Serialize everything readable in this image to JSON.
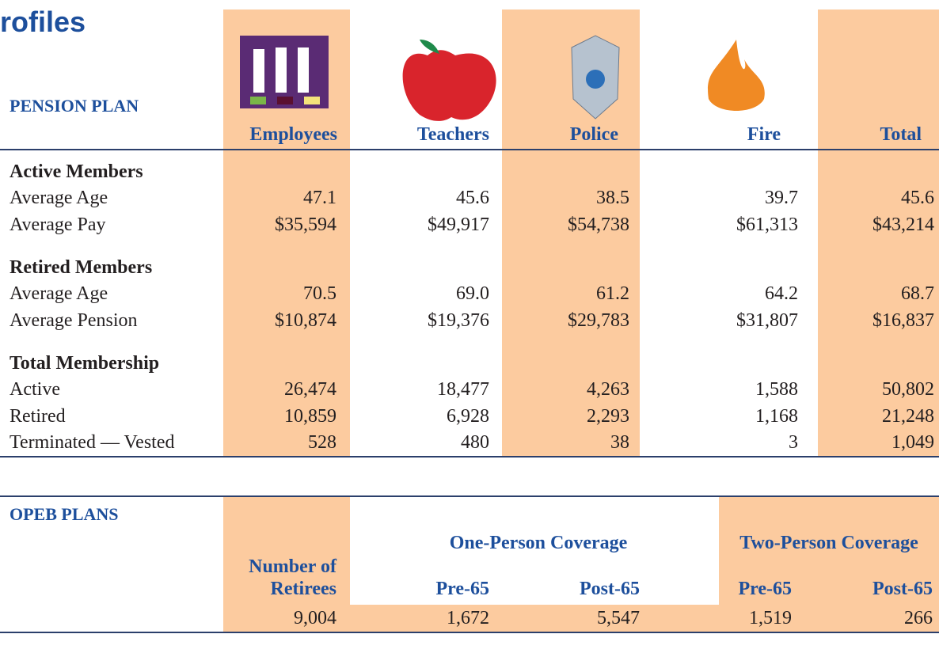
{
  "header": {
    "title": "rofiles"
  },
  "pension": {
    "title": "PENSION PLAN",
    "columns": [
      "Employees",
      "Teachers",
      "Police",
      "Fire",
      "Total"
    ],
    "sections": [
      {
        "heading": "Active Members",
        "rows": [
          {
            "label": "Average Age",
            "values": [
              "47.1",
              "45.6",
              "38.5",
              "39.7",
              "45.6"
            ]
          },
          {
            "label": "Average Pay",
            "values": [
              "$35,594",
              "$49,917",
              "$54,738",
              "$61,313",
              "$43,214"
            ]
          }
        ]
      },
      {
        "heading": "Retired Members",
        "rows": [
          {
            "label": "Average Age",
            "values": [
              "70.5",
              "69.0",
              "61.2",
              "64.2",
              "68.7"
            ]
          },
          {
            "label": "Average Pension",
            "values": [
              "$10,874",
              "$19,376",
              "$29,783",
              "$31,807",
              "$16,837"
            ]
          }
        ]
      },
      {
        "heading": "Total Membership",
        "rows": [
          {
            "label": "Active",
            "values": [
              "26,474",
              "18,477",
              "4,263",
              "1,588",
              "50,802"
            ]
          },
          {
            "label": "Retired",
            "values": [
              "10,859",
              "6,928",
              "2,293",
              "1,168",
              "21,248"
            ]
          },
          {
            "label": "Terminated — Vested",
            "values": [
              "528",
              "480",
              "38",
              "3",
              "1,049"
            ]
          }
        ]
      }
    ]
  },
  "opeb": {
    "title": "OPEB PLANS",
    "groups": [
      "One-Person Coverage",
      "Two-Person Coverage"
    ],
    "columns": [
      "Number of Retirees",
      "Pre-65",
      "Post-65",
      "Pre-65",
      "Post-65"
    ],
    "values": [
      "9,004",
      "1,672",
      "5,547",
      "1,519",
      "266"
    ]
  }
}
